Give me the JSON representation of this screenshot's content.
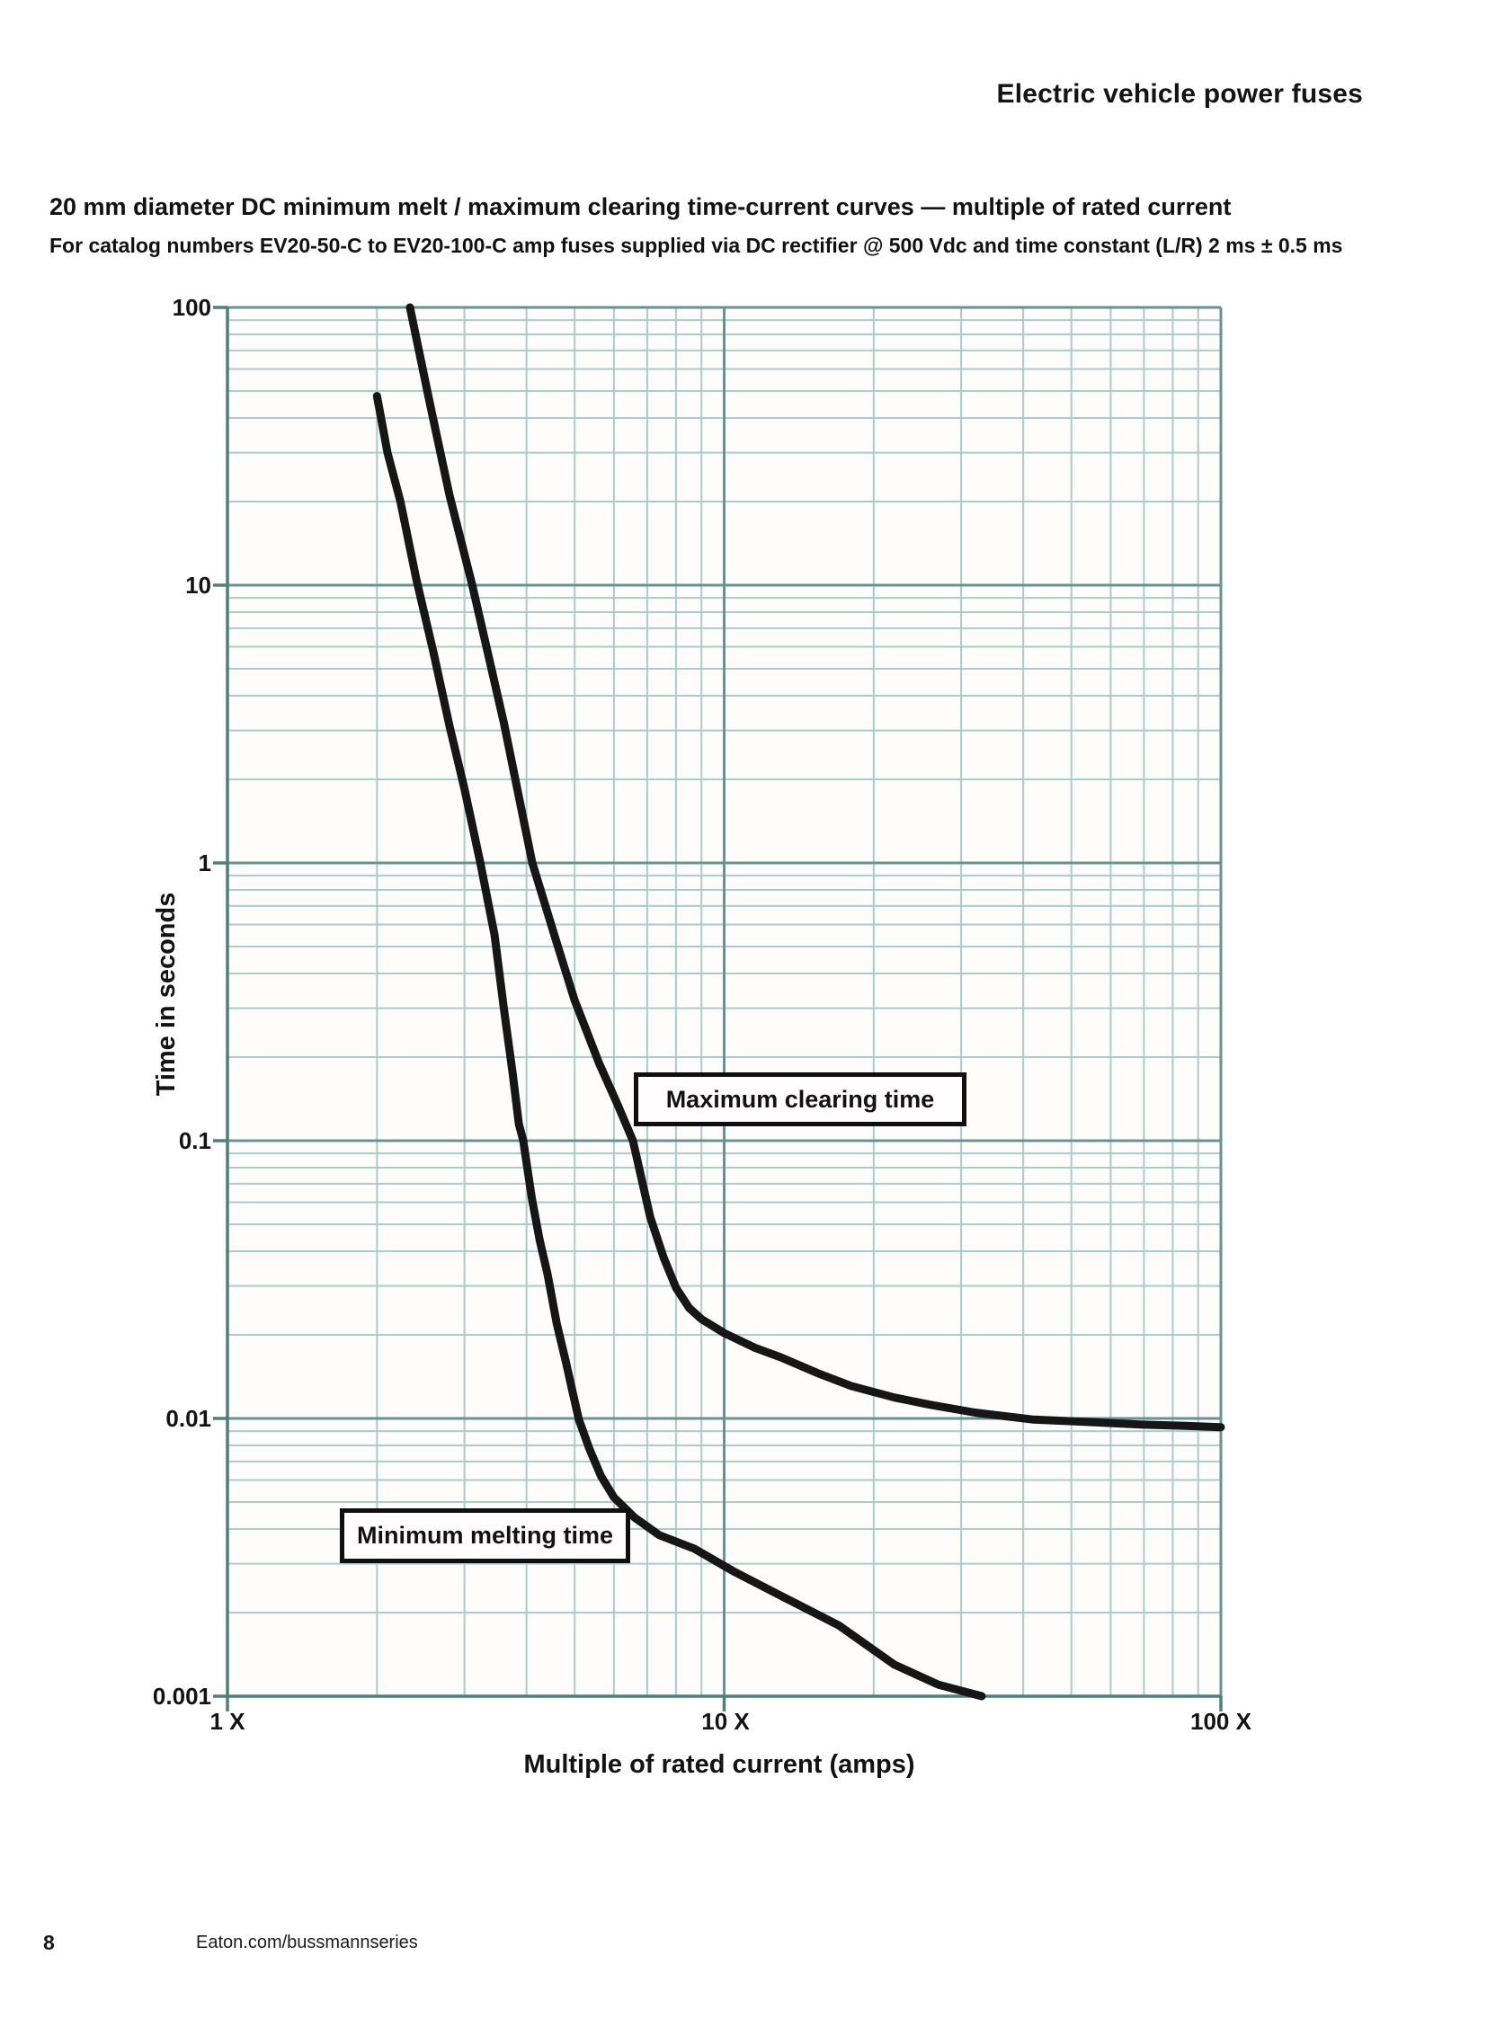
{
  "page": {
    "header": "Electric vehicle power fuses",
    "title": "20 mm diameter DC minimum melt / maximum clearing time-current curves — multiple of rated current",
    "subtitle": "For catalog numbers EV20-50-C to EV20-100-C amp fuses supplied via DC rectifier @ 500 Vdc and time constant (L/R) 2 ms ± 0.5 ms",
    "footer": {
      "page_number": "8",
      "website": "Eaton.com/bussmannseries"
    }
  },
  "chart_data": {
    "type": "line",
    "title": "20 mm diameter DC minimum melt / maximum clearing time-current curves — multiple of rated current",
    "xlabel": "Multiple of rated current (amps)",
    "ylabel": "Time in seconds",
    "x_scale": "log",
    "y_scale": "log",
    "xlim": [
      1,
      100
    ],
    "ylim": [
      0.001,
      100
    ],
    "x_tick_labels": [
      "1 X",
      "10 X",
      "100 X"
    ],
    "y_tick_labels": [
      "100",
      "10",
      "1",
      "0.1",
      "0.01",
      "0.001"
    ],
    "grid": true,
    "grid_style": "full log-log graph paper, minor lines at 2-9 of each decade",
    "colors": {
      "grid_minor": "#a9cdc9",
      "grid_major": "#679390",
      "axis": "#4d7f7c",
      "curve": "#161616",
      "plot_background": "#fffcfc"
    },
    "series": [
      {
        "name": "Maximum clearing time",
        "points": [
          [
            2.33,
            100
          ],
          [
            2.55,
            46
          ],
          [
            2.8,
            21
          ],
          [
            3.11,
            10
          ],
          [
            3.6,
            3.2
          ],
          [
            4.11,
            1.0
          ],
          [
            4.55,
            0.55
          ],
          [
            5.0,
            0.32
          ],
          [
            5.6,
            0.19
          ],
          [
            6.1,
            0.135
          ],
          [
            6.55,
            0.1
          ],
          [
            7.1,
            0.053
          ],
          [
            7.55,
            0.038
          ],
          [
            8.0,
            0.0295
          ],
          [
            8.5,
            0.025
          ],
          [
            9.0,
            0.0228
          ],
          [
            10.0,
            0.0203
          ],
          [
            11.5,
            0.018
          ],
          [
            13,
            0.0166
          ],
          [
            15.5,
            0.0145
          ],
          [
            18,
            0.0131
          ],
          [
            22,
            0.0119
          ],
          [
            26,
            0.0112
          ],
          [
            32,
            0.0105
          ],
          [
            42,
            0.0099
          ],
          [
            55,
            0.0097
          ],
          [
            70,
            0.0095
          ],
          [
            85,
            0.0094
          ],
          [
            100,
            0.0093
          ]
        ]
      },
      {
        "name": "Minimum melting time",
        "points": [
          [
            2.0,
            48
          ],
          [
            2.1,
            30
          ],
          [
            2.23,
            20
          ],
          [
            2.4,
            10.5
          ],
          [
            2.6,
            5.7
          ],
          [
            2.8,
            3.1
          ],
          [
            3.0,
            1.85
          ],
          [
            3.23,
            1.0
          ],
          [
            3.45,
            0.55
          ],
          [
            3.6,
            0.3
          ],
          [
            3.75,
            0.175
          ],
          [
            3.86,
            0.115
          ],
          [
            3.94,
            0.1
          ],
          [
            4.1,
            0.062
          ],
          [
            4.25,
            0.044
          ],
          [
            4.41,
            0.033
          ],
          [
            4.6,
            0.022
          ],
          [
            4.8,
            0.016
          ],
          [
            4.95,
            0.0125
          ],
          [
            5.1,
            0.0099
          ],
          [
            5.35,
            0.0078
          ],
          [
            5.65,
            0.0062
          ],
          [
            6.0,
            0.0052
          ],
          [
            6.6,
            0.0044
          ],
          [
            7.4,
            0.0038
          ],
          [
            8.7,
            0.0034
          ],
          [
            10.5,
            0.0028
          ],
          [
            13,
            0.0023
          ],
          [
            17,
            0.0018
          ],
          [
            22,
            0.0013
          ],
          [
            27,
            0.0011
          ],
          [
            33,
            0.001
          ]
        ]
      }
    ]
  }
}
